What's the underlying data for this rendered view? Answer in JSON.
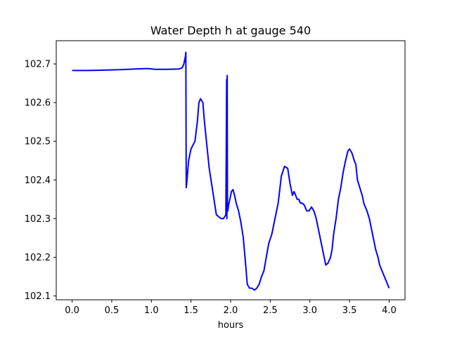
{
  "chart_data": {
    "type": "line",
    "title": "Water Depth h at gauge 540",
    "xlabel": "hours",
    "ylabel": "",
    "xlim": [
      -0.2,
      4.2
    ],
    "ylim": [
      102.09,
      102.76
    ],
    "xticks": [
      0.0,
      0.5,
      1.0,
      1.5,
      2.0,
      2.5,
      3.0,
      3.5,
      4.0
    ],
    "xtick_labels": [
      "0.0",
      "0.5",
      "1.0",
      "1.5",
      "2.0",
      "2.5",
      "3.0",
      "3.5",
      "4.0"
    ],
    "yticks": [
      102.1,
      102.2,
      102.3,
      102.4,
      102.5,
      102.6,
      102.7
    ],
    "ytick_labels": [
      "102.1",
      "102.2",
      "102.3",
      "102.4",
      "102.5",
      "102.6",
      "102.7"
    ],
    "grid": false,
    "color": "#0000ff",
    "series": [
      {
        "x": [
          0.0,
          0.2,
          0.4,
          0.6,
          0.8,
          0.95,
          1.05,
          1.2,
          1.35,
          1.39,
          1.41,
          1.43,
          1.435,
          1.44,
          1.45,
          1.47,
          1.5,
          1.55,
          1.58,
          1.6,
          1.62,
          1.65,
          1.67,
          1.7,
          1.73,
          1.76,
          1.79,
          1.82,
          1.85,
          1.88,
          1.91,
          1.94,
          1.95,
          1.953,
          1.957,
          1.96,
          1.962,
          1.964,
          1.966,
          1.97,
          1.99,
          2.01,
          2.03,
          2.05,
          2.07,
          2.1,
          2.13,
          2.16,
          2.19,
          2.21,
          2.24,
          2.27,
          2.3,
          2.33,
          2.36,
          2.39,
          2.42,
          2.45,
          2.48,
          2.52,
          2.56,
          2.6,
          2.64,
          2.68,
          2.72,
          2.75,
          2.78,
          2.8,
          2.82,
          2.84,
          2.86,
          2.88,
          2.9,
          2.93,
          2.96,
          2.99,
          3.02,
          3.05,
          3.08,
          3.11,
          3.14,
          3.17,
          3.2,
          3.23,
          3.26,
          3.28,
          3.3,
          3.33,
          3.36,
          3.39,
          3.42,
          3.45,
          3.48,
          3.5,
          3.53,
          3.56,
          3.58,
          3.6,
          3.63,
          3.66,
          3.68,
          3.7,
          3.72,
          3.75,
          3.78,
          3.8,
          3.83,
          3.86,
          3.88,
          3.9,
          3.92,
          3.94,
          3.96,
          3.98,
          4.0
        ],
        "y": [
          102.683,
          102.683,
          102.684,
          102.685,
          102.687,
          102.688,
          102.686,
          102.686,
          102.687,
          102.69,
          102.7,
          102.72,
          102.73,
          102.38,
          102.4,
          102.45,
          102.48,
          102.5,
          102.55,
          102.6,
          102.61,
          102.6,
          102.55,
          102.49,
          102.43,
          102.39,
          102.35,
          102.31,
          102.305,
          102.3,
          102.3,
          102.31,
          102.66,
          102.3,
          102.67,
          102.32,
          102.33,
          102.34,
          102.32,
          102.33,
          102.35,
          102.37,
          102.375,
          102.36,
          102.34,
          102.32,
          102.29,
          102.25,
          102.18,
          102.13,
          102.12,
          102.12,
          102.115,
          102.12,
          102.13,
          102.15,
          102.165,
          102.2,
          102.235,
          102.26,
          102.3,
          102.34,
          102.41,
          102.435,
          102.43,
          102.39,
          102.36,
          102.37,
          102.36,
          102.35,
          102.35,
          102.34,
          102.34,
          102.335,
          102.32,
          102.32,
          102.33,
          102.32,
          102.3,
          102.27,
          102.24,
          102.21,
          102.18,
          102.185,
          102.2,
          102.22,
          102.26,
          102.3,
          102.35,
          102.38,
          102.42,
          102.45,
          102.475,
          102.48,
          102.47,
          102.45,
          102.44,
          102.4,
          102.38,
          102.36,
          102.34,
          102.33,
          102.32,
          102.3,
          102.27,
          102.25,
          102.22,
          102.2,
          102.18,
          102.17,
          102.16,
          102.15,
          102.14,
          102.13,
          102.12
        ]
      }
    ]
  }
}
